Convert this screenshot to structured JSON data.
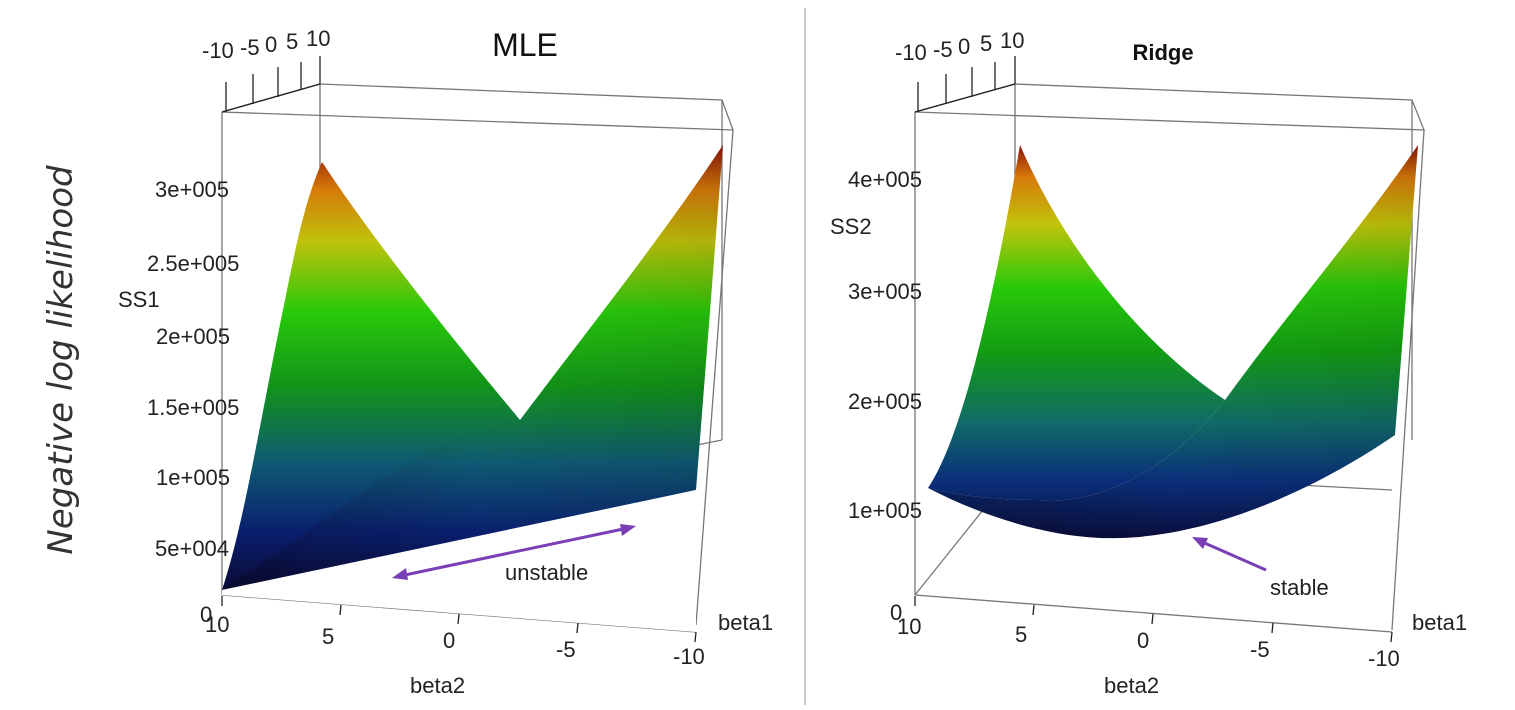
{
  "y_title": "Negative log likelihood",
  "annotation_color": "#7b3fb5",
  "chart_data": [
    {
      "type": "surface",
      "title": "MLE",
      "xlabel": "beta2",
      "ylabel": "beta1",
      "zlabel": "SS1",
      "x_range": [
        -10,
        10
      ],
      "y_range": [
        -10,
        10
      ],
      "z_range": [
        0,
        300000
      ],
      "x_ticks": [
        "10",
        "5",
        "0",
        "-5",
        "-10"
      ],
      "y_ticks": [
        "-10",
        "-5",
        "0",
        "5",
        "10"
      ],
      "z_ticks": [
        "0",
        "5e+004",
        "1e+005",
        "1.5e+005",
        "2e+005",
        "2.5e+005",
        "3e+005"
      ],
      "annotation": "unstable",
      "colormap": [
        "#0b0c3a",
        "#0a2f7a",
        "#106b66",
        "#139d12",
        "#28c90a",
        "#c2c40a",
        "#d6790a",
        "#8b1208"
      ]
    },
    {
      "type": "surface",
      "title": "Ridge",
      "xlabel": "beta2",
      "ylabel": "beta1",
      "zlabel": "SS2",
      "x_range": [
        -10,
        10
      ],
      "y_range": [
        -10,
        10
      ],
      "z_range": [
        0,
        400000
      ],
      "x_ticks": [
        "10",
        "5",
        "0",
        "-5",
        "-10"
      ],
      "y_ticks": [
        "-10",
        "-5",
        "0",
        "5",
        "10"
      ],
      "z_ticks": [
        "0",
        "1e+005",
        "2e+005",
        "3e+005",
        "4e+005"
      ],
      "annotation": "stable",
      "colormap": [
        "#0b0c3a",
        "#0a2f7a",
        "#106b66",
        "#139d12",
        "#28c90a",
        "#c2c40a",
        "#d6790a",
        "#8b1208"
      ]
    }
  ]
}
